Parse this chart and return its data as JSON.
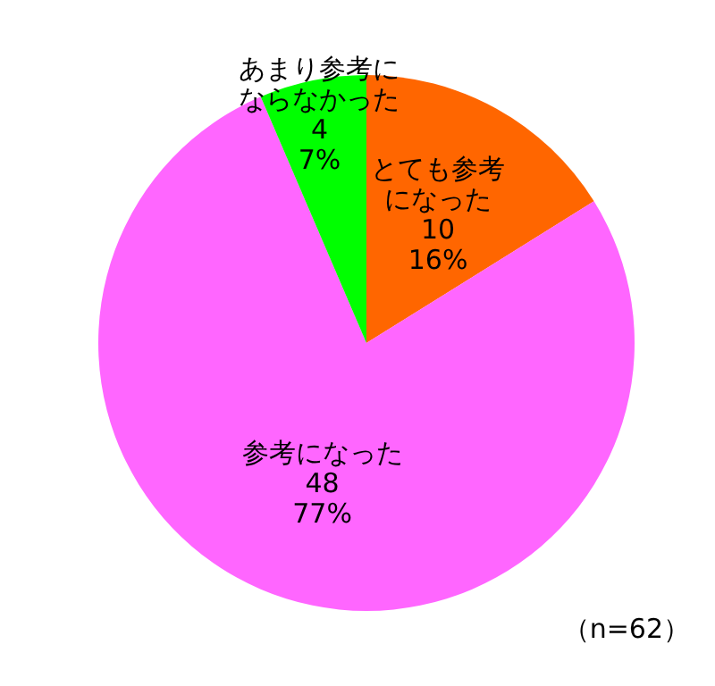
{
  "chart_data": {
    "type": "pie",
    "categories": [
      "とても参考になった",
      "参考になった",
      "あまり参考にならなかった"
    ],
    "values": [
      10,
      48,
      4
    ],
    "colors": [
      "#ff6600",
      "#ff66ff",
      "#00ff00"
    ],
    "value_labels": [
      "10\n16%",
      "48\n77%",
      "4\n7%"
    ],
    "annotations": [
      "（n=62）"
    ],
    "legend": false
  }
}
